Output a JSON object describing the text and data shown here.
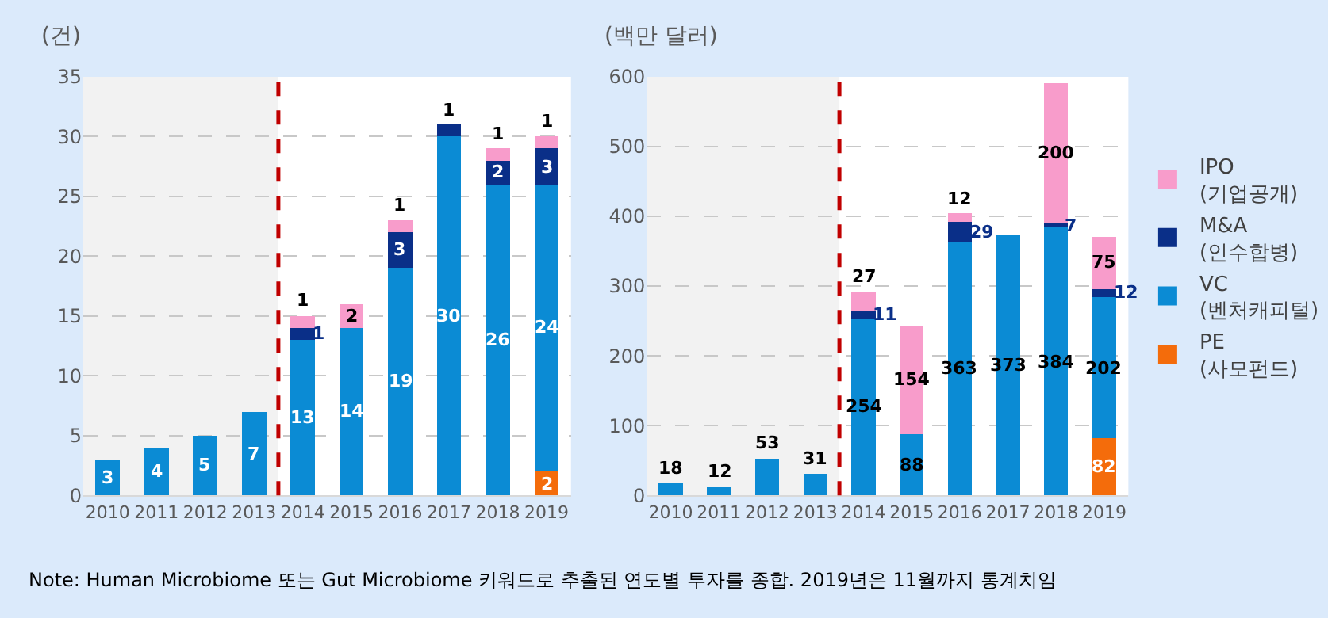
{
  "chart_data": [
    {
      "type": "bar",
      "stacked": true,
      "ylabel": "(건)",
      "categories": [
        "2010",
        "2011",
        "2012",
        "2013",
        "2014",
        "2015",
        "2016",
        "2017",
        "2018",
        "2019"
      ],
      "series": [
        {
          "color": "#f46c0b",
          "values": [
            null,
            null,
            null,
            null,
            null,
            null,
            null,
            null,
            null,
            2
          ]
        },
        {
          "color": "#0b8bd4",
          "values": [
            3,
            4,
            5,
            7,
            13,
            14,
            19,
            30,
            26,
            24
          ]
        },
        {
          "color": "#0a2f88",
          "values": [
            null,
            null,
            null,
            null,
            1,
            null,
            3,
            1,
            2,
            3
          ]
        },
        {
          "color": "#f89ccb",
          "values": [
            null,
            null,
            null,
            null,
            1,
            2,
            1,
            null,
            1,
            1
          ]
        }
      ],
      "ylim": [
        0,
        35
      ],
      "yticks": [
        0,
        5,
        10,
        15,
        20,
        25,
        30,
        35
      ],
      "grid": "y",
      "data_labels": true,
      "bands": [
        {
          "axis": "x",
          "from": "2010",
          "to": "2013",
          "color": "#f2f2f2"
        }
      ],
      "ref_lines": [
        {
          "axis": "x",
          "value": "2013",
          "color": "#c00000",
          "line_style": "dashed"
        }
      ],
      "annotations": [
        "Note: Human Microbiome 또는 Gut Microbiome 키워드로 추출된 연도별 투자를 종합. 2019년은 11월까지 통계치임"
      ]
    },
    {
      "type": "bar",
      "stacked": true,
      "ylabel": "(백만 달러)",
      "categories": [
        "2010",
        "2011",
        "2012",
        "2013",
        "2014",
        "2015",
        "2016",
        "2017",
        "2018",
        "2019"
      ],
      "series": [
        {
          "name": "PE\n(사모펀드)",
          "color": "#f46c0b",
          "values": [
            null,
            null,
            null,
            null,
            null,
            null,
            null,
            null,
            null,
            82
          ]
        },
        {
          "name": "VC\n(벤처캐피털)",
          "color": "#0b8bd4",
          "values": [
            18,
            12,
            53,
            31,
            254,
            88,
            363,
            373,
            384,
            202
          ]
        },
        {
          "name": "M&A\n(인수합병)",
          "color": "#0a2f88",
          "values": [
            null,
            null,
            null,
            null,
            11,
            null,
            29,
            null,
            7,
            12
          ]
        },
        {
          "name": "IPO\n(기업공개)",
          "color": "#f89ccb",
          "values": [
            null,
            null,
            null,
            null,
            27,
            154,
            12,
            null,
            200,
            75
          ]
        }
      ],
      "ylim": [
        0,
        600
      ],
      "yticks": [
        0,
        100,
        200,
        300,
        400,
        500,
        600
      ],
      "grid": "y",
      "data_labels": true,
      "legend": "right",
      "bands": [
        {
          "axis": "x",
          "from": "2010",
          "to": "2013",
          "color": "#f2f2f2"
        }
      ],
      "ref_lines": [
        {
          "axis": "x",
          "value": "2013",
          "color": "#c00000",
          "line_style": "dashed"
        }
      ]
    }
  ]
}
